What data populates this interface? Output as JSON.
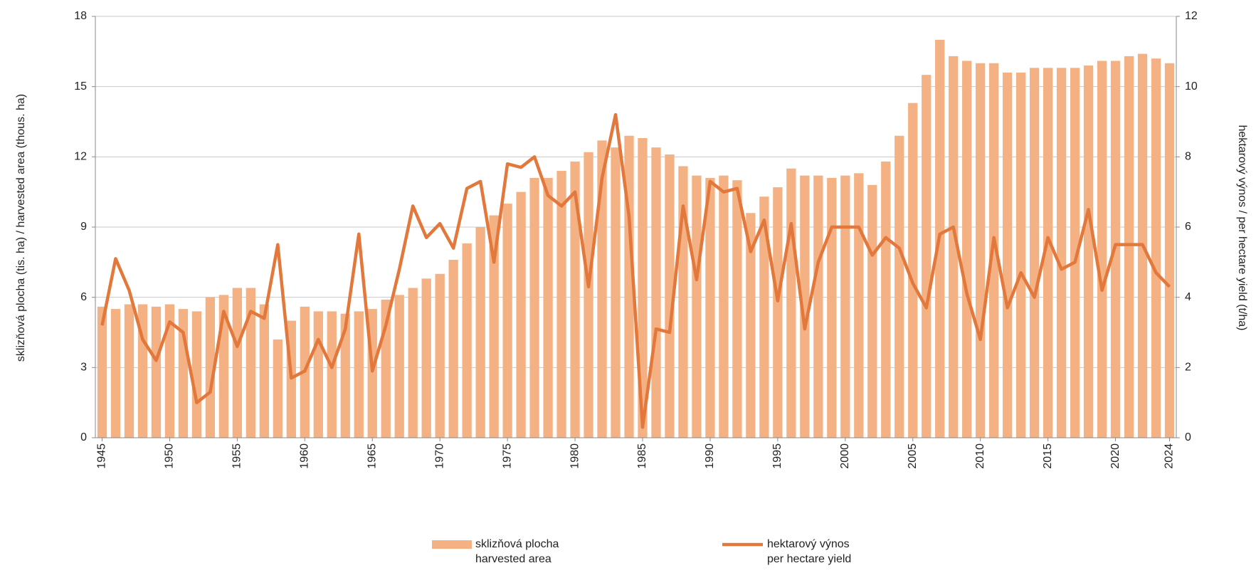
{
  "chart_data": {
    "type": "bar_line",
    "ylabel": "sklizňová plocha (tis. ha) / harvested area (thous. ha)",
    "y2label": "hektarový výnos / per hectare yield (t/ha)",
    "x": [
      1945,
      1946,
      1947,
      1948,
      1949,
      1950,
      1951,
      1952,
      1953,
      1954,
      1955,
      1956,
      1957,
      1958,
      1959,
      1960,
      1961,
      1962,
      1963,
      1964,
      1965,
      1966,
      1967,
      1968,
      1969,
      1970,
      1971,
      1972,
      1973,
      1974,
      1975,
      1976,
      1977,
      1978,
      1979,
      1980,
      1981,
      1982,
      1983,
      1984,
      1985,
      1986,
      1987,
      1988,
      1989,
      1990,
      1991,
      1992,
      1993,
      1994,
      1995,
      1996,
      1997,
      1998,
      1999,
      2000,
      2001,
      2002,
      2003,
      2004,
      2005,
      2006,
      2007,
      2008,
      2009,
      2010,
      2011,
      2012,
      2013,
      2014,
      2015,
      2016,
      2017,
      2018,
      2019,
      2020,
      2021,
      2022,
      2023,
      2024
    ],
    "series": [
      {
        "name": "sklizňová plocha\nharvested area",
        "type": "bar",
        "color": "#f4b183",
        "values": [
          5.6,
          5.5,
          5.7,
          5.7,
          5.6,
          5.7,
          5.5,
          5.4,
          6.0,
          6.1,
          6.4,
          6.4,
          5.7,
          4.2,
          5.0,
          5.6,
          5.4,
          5.4,
          5.3,
          5.4,
          5.5,
          5.9,
          6.1,
          6.4,
          6.8,
          7.0,
          7.6,
          8.3,
          9.0,
          9.5,
          10.0,
          10.5,
          11.1,
          11.1,
          11.4,
          11.8,
          12.2,
          12.7,
          12.4,
          12.9,
          12.8,
          12.4,
          12.1,
          11.6,
          11.2,
          11.1,
          11.2,
          11.0,
          9.6,
          10.3,
          10.7,
          11.5,
          11.2,
          11.2,
          11.1,
          11.2,
          11.3,
          10.8,
          11.8,
          12.9,
          14.3,
          15.5,
          17.0,
          16.3,
          16.1,
          16.0,
          16.0,
          15.6,
          15.6,
          15.8,
          15.8,
          15.8,
          15.8,
          15.9,
          16.1,
          16.1,
          16.3,
          16.4,
          16.2,
          16.0
        ]
      },
      {
        "name": "hektarový výnos\nper hectare yield",
        "type": "line",
        "axis": "y2",
        "color": "#e2783b",
        "values": [
          3.2,
          5.1,
          4.2,
          2.8,
          2.2,
          3.3,
          3.0,
          1.0,
          1.3,
          3.6,
          2.6,
          3.6,
          3.4,
          5.5,
          1.7,
          1.9,
          2.8,
          2.0,
          3.1,
          5.8,
          1.9,
          3.2,
          4.8,
          6.6,
          5.7,
          6.1,
          5.4,
          7.1,
          7.3,
          5.0,
          7.8,
          7.7,
          8.0,
          6.9,
          6.6,
          7.0,
          4.3,
          7.4,
          9.2,
          6.3,
          0.3,
          3.1,
          3.0,
          6.6,
          4.5,
          7.3,
          7.0,
          7.1,
          5.3,
          6.2,
          3.9,
          6.1,
          3.1,
          5.0,
          6.0,
          6.0,
          6.0,
          5.2,
          5.7,
          5.4,
          4.4,
          3.7,
          5.8,
          6.0,
          4.1,
          2.8,
          5.7,
          3.7,
          4.7,
          4.0,
          5.7,
          4.8,
          5.0,
          6.5,
          4.2,
          5.5,
          5.5,
          5.5,
          4.7,
          4.3
        ]
      }
    ],
    "xlim": [
      1944.5,
      2024.5
    ],
    "xticks": [
      1945,
      1950,
      1955,
      1960,
      1965,
      1970,
      1975,
      1980,
      1985,
      1990,
      1995,
      2000,
      2005,
      2010,
      2015,
      2020,
      2024
    ],
    "ylim": [
      0,
      18
    ],
    "yticks": [
      0,
      3,
      6,
      9,
      12,
      15,
      18
    ],
    "y2lim": [
      0,
      12
    ],
    "y2ticks": [
      0,
      2,
      4,
      6,
      8,
      10,
      12
    ],
    "grid": true
  }
}
